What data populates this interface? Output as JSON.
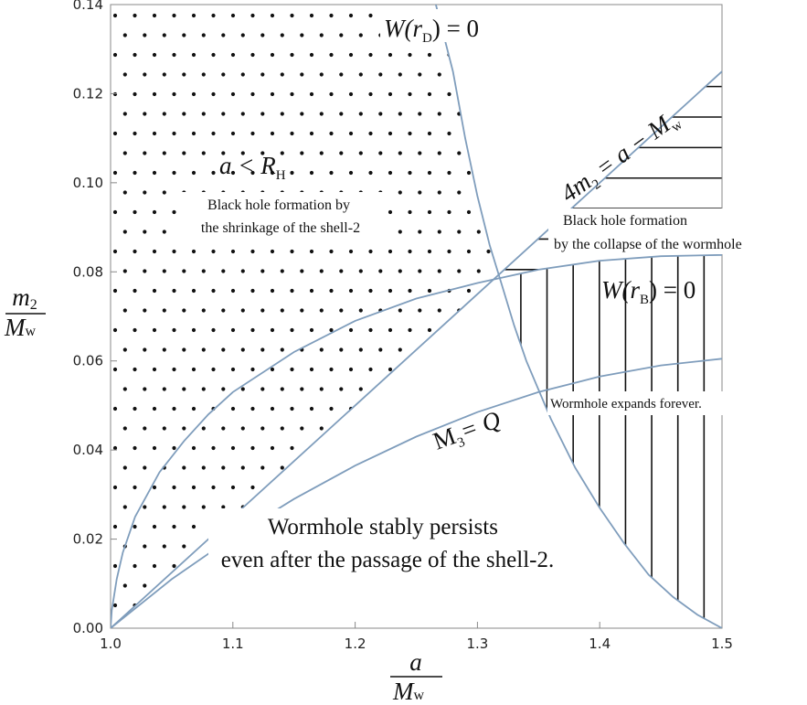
{
  "chart_data": {
    "type": "line",
    "title": "",
    "xlim": [
      1.0,
      1.5
    ],
    "ylim": [
      0.0,
      0.14
    ],
    "x_ticks": [
      "1.0",
      "1.1",
      "1.2",
      "1.3",
      "1.4",
      "1.5"
    ],
    "y_ticks": [
      "0.00",
      "0.02",
      "0.04",
      "0.06",
      "0.08",
      "0.10",
      "0.12",
      "0.14"
    ],
    "grid": false,
    "colors": {
      "curve": "#7f9dbc",
      "frame": "#888888",
      "hatch": "#111111"
    },
    "series": [
      {
        "label_parts": [
          "W(r",
          "D",
          ") = 0"
        ],
        "points": [
          [
            1.266,
            0.14
          ],
          [
            1.28,
            0.125
          ],
          [
            1.29,
            0.11
          ],
          [
            1.3,
            0.097
          ],
          [
            1.31,
            0.086
          ],
          [
            1.32,
            0.077
          ],
          [
            1.33,
            0.068
          ],
          [
            1.34,
            0.06
          ],
          [
            1.36,
            0.047
          ],
          [
            1.38,
            0.036
          ],
          [
            1.4,
            0.027
          ],
          [
            1.42,
            0.019
          ],
          [
            1.44,
            0.012
          ],
          [
            1.46,
            0.007
          ],
          [
            1.48,
            0.003
          ],
          [
            1.5,
            0.0
          ]
        ]
      },
      {
        "label_parts": [
          "4m",
          "2",
          " = a − M",
          "w"
        ],
        "points": [
          [
            1.0,
            0.0
          ],
          [
            1.5,
            0.125
          ]
        ]
      },
      {
        "label_parts": [
          "W(r",
          "B",
          ") = 0"
        ],
        "points": [
          [
            1.0,
            0.0
          ],
          [
            1.001,
            0.004
          ],
          [
            1.005,
            0.011
          ],
          [
            1.01,
            0.017
          ],
          [
            1.02,
            0.025
          ],
          [
            1.04,
            0.035
          ],
          [
            1.06,
            0.042
          ],
          [
            1.08,
            0.048
          ],
          [
            1.1,
            0.053
          ],
          [
            1.15,
            0.062
          ],
          [
            1.2,
            0.069
          ],
          [
            1.25,
            0.074
          ],
          [
            1.3,
            0.0775
          ],
          [
            1.35,
            0.0805
          ],
          [
            1.4,
            0.0825
          ],
          [
            1.45,
            0.0835
          ],
          [
            1.5,
            0.0838
          ]
        ]
      },
      {
        "label_parts": [
          "M",
          "3",
          "= Q"
        ],
        "points": [
          [
            1.0,
            0.0
          ],
          [
            1.05,
            0.011
          ],
          [
            1.1,
            0.0205
          ],
          [
            1.15,
            0.029
          ],
          [
            1.2,
            0.0365
          ],
          [
            1.25,
            0.043
          ],
          [
            1.3,
            0.0485
          ],
          [
            1.35,
            0.053
          ],
          [
            1.4,
            0.0565
          ],
          [
            1.45,
            0.059
          ],
          [
            1.5,
            0.0605
          ]
        ]
      }
    ],
    "annotations": [
      {
        "id": "bh-shrink-cond",
        "parts": [
          "a < R",
          "H"
        ]
      },
      {
        "id": "bh-shrink",
        "lines": [
          "Black hole formation by",
          "the shrinkage of the shell-2"
        ]
      },
      {
        "id": "bh-collapse",
        "lines": [
          "Black hole formation",
          "by the collapse of the wormhole"
        ]
      },
      {
        "id": "expands",
        "lines": [
          "Wormhole expands forever."
        ]
      },
      {
        "id": "stable",
        "lines": [
          "Wormhole stably persists",
          "even after the passage of the shell-2."
        ]
      }
    ],
    "xlabel_parts": [
      "a",
      "M",
      "w"
    ],
    "ylabel_parts": [
      "m",
      "2",
      "M",
      "w"
    ]
  }
}
